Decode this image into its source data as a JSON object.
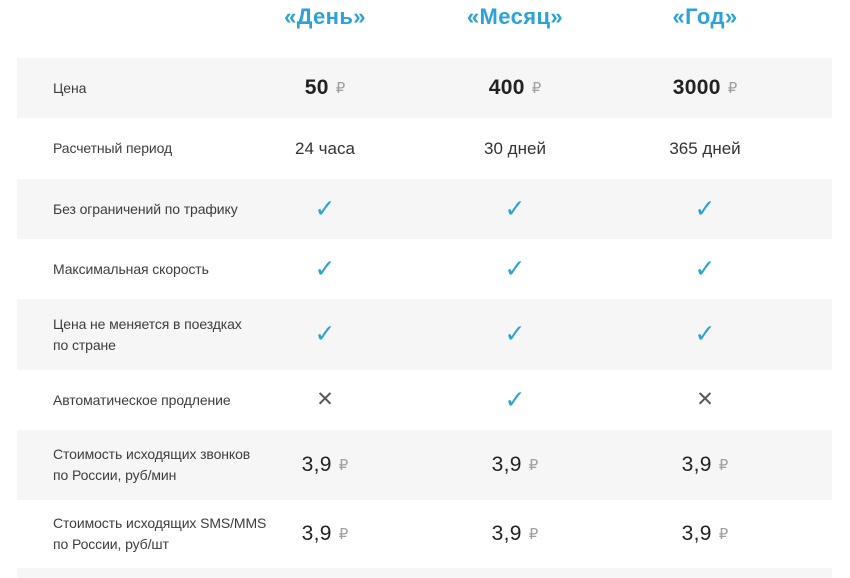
{
  "table": {
    "columns": [
      {
        "label": "«День»"
      },
      {
        "label": "«Месяц»"
      },
      {
        "label": "«Год»"
      }
    ],
    "rows": [
      {
        "label_lines": [
          "Цена"
        ],
        "type": "price",
        "emphasis": true,
        "currency": "₽",
        "values": [
          "50",
          "400",
          "3000"
        ]
      },
      {
        "label_lines": [
          "Расчетный период"
        ],
        "type": "text",
        "values": [
          "24 часа",
          "30 дней",
          "365 дней"
        ]
      },
      {
        "label_lines": [
          "Без ограничений по трафику"
        ],
        "type": "mark",
        "values": [
          "check",
          "check",
          "check"
        ]
      },
      {
        "label_lines": [
          "Максимальная скорость"
        ],
        "type": "mark",
        "values": [
          "check",
          "check",
          "check"
        ]
      },
      {
        "label_lines": [
          "Цена не меняется в поездках",
          "по стране"
        ],
        "type": "mark",
        "values": [
          "check",
          "check",
          "check"
        ]
      },
      {
        "label_lines": [
          "Автоматическое продление"
        ],
        "type": "mark",
        "values": [
          "cross",
          "check",
          "cross"
        ]
      },
      {
        "label_lines": [
          "Стоимость исходящих звонков",
          "по России, руб/мин"
        ],
        "type": "price",
        "emphasis": false,
        "currency": "₽",
        "values": [
          "3,9",
          "3,9",
          "3,9"
        ]
      },
      {
        "label_lines": [
          "Стоимость исходящих SMS/MMS",
          "по России, руб/шт"
        ],
        "type": "price",
        "emphasis": false,
        "currency": "₽",
        "values": [
          "3,9",
          "3,9",
          "3,9"
        ]
      }
    ]
  },
  "icons": {
    "check": "✓",
    "cross": "✕"
  },
  "colors": {
    "accent": "#2aa2da",
    "row_alt_bg": "#f6f6f7",
    "label_text": "#3d3d3d",
    "number_text": "#222222",
    "currency_text": "#a0a0a0",
    "cross_mark": "#58595b",
    "text_value": "#333333"
  }
}
